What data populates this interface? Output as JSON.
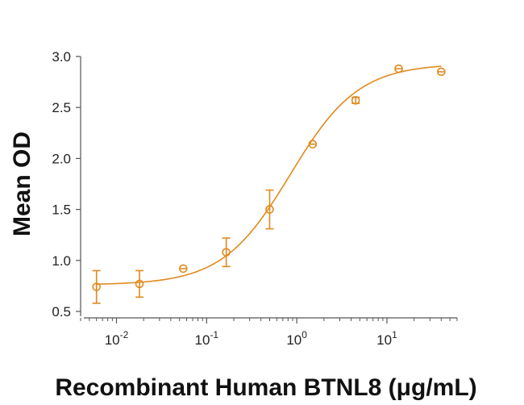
{
  "chart_data": {
    "type": "scatter",
    "title": "",
    "xlabel": "Recombinant Human BTNL8 (μg/mL)",
    "ylabel": "Mean OD",
    "x_scale": "log",
    "xlim": [
      0.004,
      60
    ],
    "ylim": [
      0.5,
      3.0
    ],
    "y_ticks": [
      0.5,
      1.0,
      1.5,
      2.0,
      2.5,
      3.0
    ],
    "y_tick_labels": [
      "0.5",
      "1.0",
      "1.5",
      "2.0",
      "2.5",
      "3.0"
    ],
    "x_ticks": [
      {
        "value": 0.01,
        "base": "10",
        "exponent": "-2"
      },
      {
        "value": 0.1,
        "base": "10",
        "exponent": "-1"
      },
      {
        "value": 1,
        "base": "10",
        "exponent": "0"
      },
      {
        "value": 10,
        "base": "10",
        "exponent": "1"
      }
    ],
    "grid": false,
    "legend": null,
    "color": "#E08A1E",
    "series": [
      {
        "name": "BTNL8",
        "marker": "open-circle",
        "points": [
          {
            "x": 0.006,
            "y": 0.74,
            "err": 0.16
          },
          {
            "x": 0.018,
            "y": 0.77,
            "err": 0.13
          },
          {
            "x": 0.055,
            "y": 0.92,
            "err": 0.02
          },
          {
            "x": 0.165,
            "y": 1.08,
            "err": 0.14
          },
          {
            "x": 0.5,
            "y": 1.5,
            "err": 0.19
          },
          {
            "x": 1.5,
            "y": 2.14,
            "err": 0.01
          },
          {
            "x": 4.5,
            "y": 2.57,
            "err": 0.03
          },
          {
            "x": 13.5,
            "y": 2.88,
            "err": 0.01
          },
          {
            "x": 40,
            "y": 2.85,
            "err": 0.01
          }
        ],
        "fit": {
          "model": "4PL",
          "bottom": 0.76,
          "top": 2.93,
          "ec50": 0.85,
          "hill": 1.15
        }
      }
    ]
  }
}
